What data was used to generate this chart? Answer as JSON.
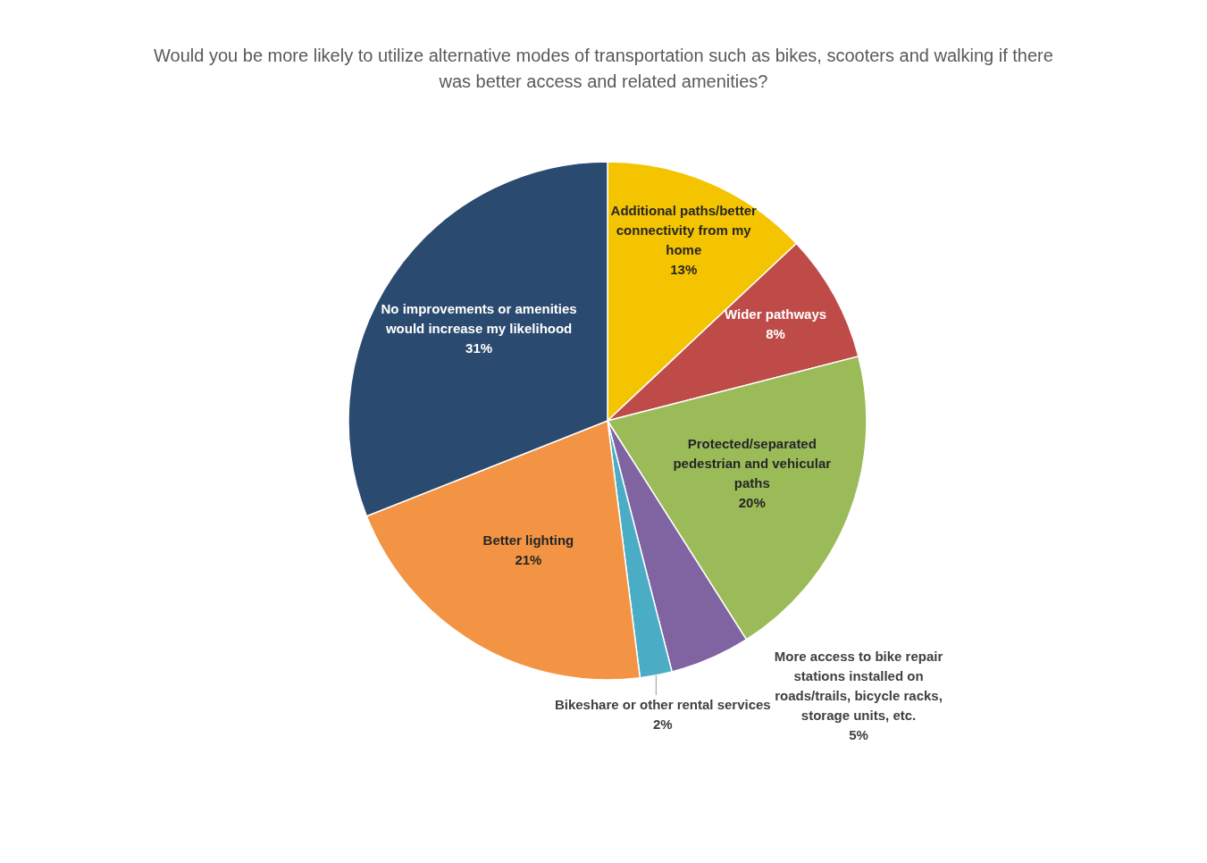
{
  "chart_data": {
    "type": "pie",
    "title": "Would you be more likely to utilize alternative modes of transportation such as bikes, scooters and walking if there was better access and related amenities?",
    "categories": [
      "Additional paths/better connectivity from my home",
      "Wider pathways",
      "Protected/separated pedestrian and vehicular paths",
      "More access to bike repair stations installed on roads/trails, bicycle racks, storage units, etc.",
      "Bikeshare or other rental services",
      "Better lighting",
      "No improvements or amenities would increase my likelihood"
    ],
    "values": [
      13,
      8,
      20,
      5,
      2,
      21,
      31
    ],
    "colors": [
      "#f5c400",
      "#be4b48",
      "#9bbb59",
      "#8064a2",
      "#4bacc6",
      "#f29443",
      "#2b4a6f"
    ],
    "value_labels": [
      "13%",
      "8%",
      "20%",
      "5%",
      "2%",
      "21%",
      "31%"
    ],
    "legend": false
  }
}
